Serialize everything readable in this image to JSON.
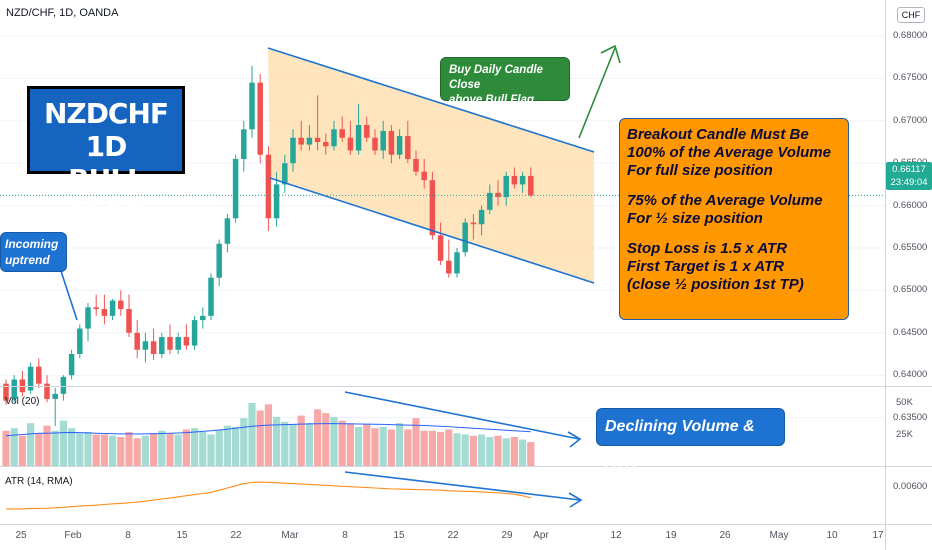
{
  "header": {
    "symbol_line": "NZD/CHF, 1D, OANDA"
  },
  "currency_badge": "CHF",
  "price_axis": {
    "labels": [
      "0.68000",
      "0.67500",
      "0.67000",
      "0.66500",
      "0.66000",
      "0.65500",
      "0.65000",
      "0.64500",
      "0.64000",
      "0.63500"
    ],
    "current_price": "0.66117",
    "countdown": "23:49:04"
  },
  "volume_axis": {
    "labels": [
      "50K",
      "25K"
    ]
  },
  "atr_axis": {
    "labels": [
      "0.00600"
    ]
  },
  "indicators": {
    "volume_label": "Vol (20)",
    "atr_label": "ATR (14, RMA)"
  },
  "date_axis": [
    "25",
    "Feb",
    "8",
    "15",
    "22",
    "Mar",
    "8",
    "15",
    "22",
    "29",
    "Apr",
    "12",
    "19",
    "26",
    "May",
    "10",
    "17"
  ],
  "annotations": {
    "title_line1": "NZDCHF 1D",
    "title_line2": "BULL FLAG",
    "uptrend_line1": "Incoming",
    "uptrend_line2": "uptrend",
    "buy_line1": "Buy Daily Candle Close",
    "buy_line2": "above Bull Flag",
    "declining": "Declining Volume & ATR",
    "rules": [
      "Breakout Candle Must Be",
      "100% of the Average Volume",
      "For full size position",
      "75% of the Average Volume",
      "For ½ size position",
      "Stop Loss is 1.5 x ATR",
      "First Target is 1 x ATR",
      "(close ½ position 1st TP)"
    ]
  },
  "colors": {
    "up": "#26a69a",
    "down": "#ef5350",
    "flag_fill": "#ffe0b2",
    "channel": "#1e73d2",
    "atr": "#ff8c1a",
    "vol_ma": "#2962ff"
  },
  "chart_data": {
    "type": "candlestick",
    "candles": [
      [
        0.639,
        0.6395,
        0.6365,
        0.637
      ],
      [
        0.6372,
        0.64,
        0.6368,
        0.6395
      ],
      [
        0.6395,
        0.6405,
        0.6375,
        0.638
      ],
      [
        0.6382,
        0.6415,
        0.6378,
        0.641
      ],
      [
        0.641,
        0.642,
        0.6385,
        0.639
      ],
      [
        0.639,
        0.64,
        0.6368,
        0.6372
      ],
      [
        0.6372,
        0.6385,
        0.634,
        0.6378
      ],
      [
        0.6378,
        0.64,
        0.637,
        0.6398
      ],
      [
        0.64,
        0.643,
        0.6395,
        0.6425
      ],
      [
        0.6425,
        0.646,
        0.642,
        0.6455
      ],
      [
        0.6455,
        0.6485,
        0.644,
        0.648
      ],
      [
        0.648,
        0.6495,
        0.647,
        0.6478
      ],
      [
        0.6478,
        0.6495,
        0.646,
        0.647
      ],
      [
        0.647,
        0.649,
        0.6465,
        0.6488
      ],
      [
        0.6488,
        0.65,
        0.647,
        0.6478
      ],
      [
        0.6478,
        0.6495,
        0.6445,
        0.645
      ],
      [
        0.645,
        0.6465,
        0.642,
        0.643
      ],
      [
        0.643,
        0.645,
        0.6415,
        0.644
      ],
      [
        0.644,
        0.6455,
        0.6418,
        0.6425
      ],
      [
        0.6425,
        0.645,
        0.642,
        0.6445
      ],
      [
        0.6445,
        0.646,
        0.6425,
        0.643
      ],
      [
        0.643,
        0.645,
        0.6425,
        0.6445
      ],
      [
        0.6445,
        0.646,
        0.643,
        0.6435
      ],
      [
        0.6435,
        0.647,
        0.643,
        0.6465
      ],
      [
        0.6465,
        0.648,
        0.6455,
        0.647
      ],
      [
        0.647,
        0.652,
        0.6465,
        0.6515
      ],
      [
        0.6515,
        0.656,
        0.6505,
        0.6555
      ],
      [
        0.6555,
        0.659,
        0.6545,
        0.6585
      ],
      [
        0.6585,
        0.666,
        0.658,
        0.6655
      ],
      [
        0.6655,
        0.67,
        0.664,
        0.669
      ],
      [
        0.669,
        0.6765,
        0.668,
        0.6745
      ],
      [
        0.6745,
        0.6755,
        0.665,
        0.666
      ],
      [
        0.666,
        0.667,
        0.657,
        0.6585
      ],
      [
        0.6585,
        0.664,
        0.6575,
        0.6625
      ],
      [
        0.6625,
        0.666,
        0.6615,
        0.665
      ],
      [
        0.665,
        0.669,
        0.664,
        0.668
      ],
      [
        0.668,
        0.67,
        0.6665,
        0.6672
      ],
      [
        0.6672,
        0.6695,
        0.6665,
        0.668
      ],
      [
        0.668,
        0.673,
        0.6665,
        0.6675
      ],
      [
        0.6675,
        0.6685,
        0.666,
        0.667
      ],
      [
        0.667,
        0.67,
        0.6665,
        0.669
      ],
      [
        0.669,
        0.6705,
        0.6675,
        0.668
      ],
      [
        0.668,
        0.67,
        0.666,
        0.6665
      ],
      [
        0.6665,
        0.672,
        0.666,
        0.6695
      ],
      [
        0.6695,
        0.6705,
        0.6675,
        0.668
      ],
      [
        0.668,
        0.669,
        0.666,
        0.6665
      ],
      [
        0.6665,
        0.67,
        0.6655,
        0.6688
      ],
      [
        0.6688,
        0.6695,
        0.665,
        0.666
      ],
      [
        0.666,
        0.669,
        0.6655,
        0.6682
      ],
      [
        0.6682,
        0.67,
        0.665,
        0.6655
      ],
      [
        0.6655,
        0.6665,
        0.6635,
        0.664
      ],
      [
        0.664,
        0.6655,
        0.662,
        0.663
      ],
      [
        0.663,
        0.664,
        0.656,
        0.6565
      ],
      [
        0.6565,
        0.658,
        0.653,
        0.6535
      ],
      [
        0.6535,
        0.656,
        0.6515,
        0.652
      ],
      [
        0.652,
        0.655,
        0.6515,
        0.6545
      ],
      [
        0.6545,
        0.6585,
        0.654,
        0.658
      ],
      [
        0.658,
        0.659,
        0.656,
        0.6578
      ],
      [
        0.6578,
        0.66,
        0.6565,
        0.6595
      ],
      [
        0.6595,
        0.6625,
        0.659,
        0.6615
      ],
      [
        0.6615,
        0.663,
        0.66,
        0.661
      ],
      [
        0.661,
        0.664,
        0.66,
        0.6635
      ],
      [
        0.6635,
        0.6645,
        0.662,
        0.6625
      ],
      [
        0.6625,
        0.664,
        0.6615,
        0.6635
      ],
      [
        0.6635,
        0.6645,
        0.661,
        0.6612
      ]
    ],
    "volume": [
      28,
      30,
      24,
      34,
      26,
      32,
      28,
      36,
      30,
      26,
      27,
      25,
      25,
      24,
      23,
      27,
      22,
      24,
      26,
      28,
      26,
      25,
      29,
      30,
      27,
      25,
      29,
      32,
      31,
      38,
      50,
      44,
      49,
      39,
      35,
      33,
      40,
      34,
      45,
      42,
      39,
      36,
      34,
      31,
      33,
      30,
      31,
      29,
      34,
      29,
      38,
      28,
      28,
      27,
      29,
      26,
      25,
      24,
      25,
      23,
      24,
      22,
      23,
      21,
      19
    ],
    "volume_ma": [
      24,
      24.5,
      25,
      25.5,
      26,
      26,
      26.2,
      26.5,
      26.6,
      26.5,
      26.3,
      26,
      25.8,
      25.6,
      25.5,
      25.5,
      25.4,
      25.5,
      25.6,
      25.8,
      26,
      26.2,
      26.5,
      27,
      27.5,
      28,
      28.6,
      29.2,
      30,
      30.8,
      31.5,
      32,
      32.4,
      32.6,
      32.8,
      33,
      33.2,
      33.4,
      33.5,
      33.6,
      33.6,
      33.5,
      33.4,
      33.3,
      33.2,
      33.1,
      33,
      32.8,
      32.6,
      32.4,
      32.3,
      32.1,
      31.8,
      31.5,
      31.2,
      30.8,
      30.4,
      30,
      29.6,
      29.2,
      28.8,
      28.4,
      28,
      27.6,
      27.2
    ],
    "atr": [
      0.00505,
      0.00505,
      0.00505,
      0.00507,
      0.00507,
      0.00508,
      0.0051,
      0.00512,
      0.00515,
      0.00518,
      0.0052,
      0.00522,
      0.00525,
      0.00528,
      0.0053,
      0.00533,
      0.00536,
      0.0054,
      0.00545,
      0.0055,
      0.00555,
      0.0056,
      0.00565,
      0.0057,
      0.00575,
      0.0058,
      0.0059,
      0.006,
      0.0061,
      0.0062,
      0.00625,
      0.00627,
      0.00626,
      0.00624,
      0.00622,
      0.0062,
      0.00618,
      0.00616,
      0.00614,
      0.00612,
      0.0061,
      0.00608,
      0.00606,
      0.00604,
      0.00602,
      0.006,
      0.00598,
      0.00596,
      0.00595,
      0.00594,
      0.00593,
      0.00592,
      0.00591,
      0.0059,
      0.00588,
      0.00586,
      0.00585,
      0.00584,
      0.00582,
      0.0058,
      0.00578,
      0.00575,
      0.00572,
      0.00565,
      0.00555
    ]
  }
}
